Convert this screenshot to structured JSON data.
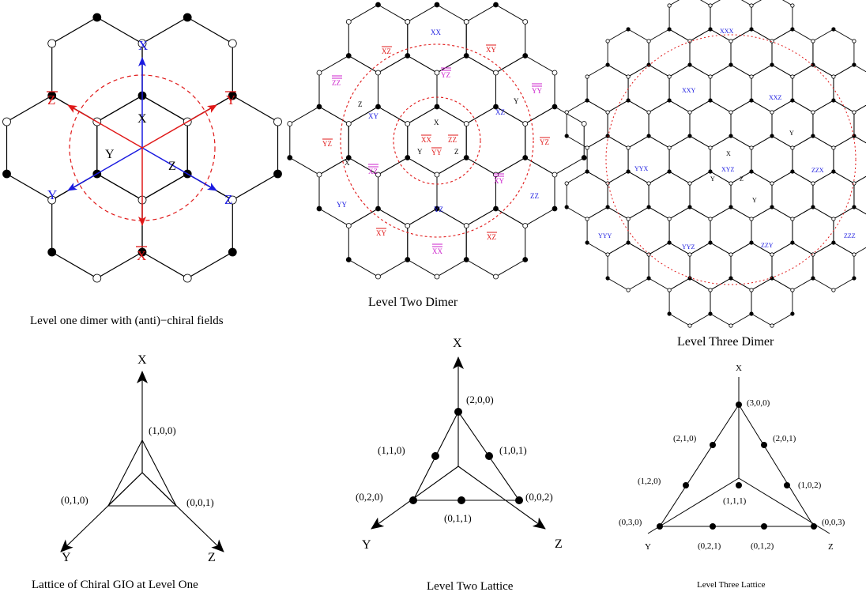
{
  "colors": {
    "line": "#000000",
    "red": "#e01818",
    "blue": "#1a1ae0",
    "magenta": "#cc22cc"
  },
  "panels": {
    "level1_dimer": {
      "caption": "Level one dimer with (anti)−chiral fields",
      "chiral": [
        "X",
        "Y",
        "Z"
      ],
      "antichiral": [
        "X",
        "Y",
        "Z"
      ],
      "inner": [
        "X",
        "Y",
        "Z"
      ]
    },
    "level2_dimer": {
      "caption": "Level Two Dimer",
      "blue": [
        "XX",
        "XY",
        "XZ",
        "YY",
        "YZ",
        "ZZ"
      ],
      "red": [
        "XZ",
        "XY",
        "YZ",
        "YZ",
        "XY",
        "XZ",
        "XX",
        "ZZ",
        "YY"
      ],
      "magenta": [
        "ZZ",
        "YZ",
        "YY",
        "XZ",
        "XY",
        "XX"
      ],
      "black": [
        "X",
        "Y",
        "Z",
        "X",
        "Y",
        "Z"
      ]
    },
    "level3_dimer": {
      "caption": "Level Three Dimer",
      "blue": [
        "XXX",
        "XXY",
        "XXZ",
        "YYX",
        "XYZ",
        "ZZX",
        "YYY",
        "YYZ",
        "ZZY",
        "ZZZ"
      ],
      "black": [
        "X",
        "Y",
        "Z",
        "Y",
        "Y"
      ]
    },
    "level1_lattice": {
      "caption": "Lattice of Chiral GIO at Level One",
      "axes": [
        "X",
        "Y",
        "Z"
      ],
      "points": [
        "(1,0,0)",
        "(0,1,0)",
        "(0,0,1)"
      ]
    },
    "level2_lattice": {
      "caption": "Level Two Lattice",
      "axes": [
        "X",
        "Y",
        "Z"
      ],
      "points": [
        "(2,0,0)",
        "(1,1,0)",
        "(1,0,1)",
        "(0,2,0)",
        "(0,0,2)",
        "(0,1,1)"
      ]
    },
    "level3_lattice": {
      "caption": "Level  Three Lattice",
      "axes": [
        "X",
        "Y",
        "Z"
      ],
      "points": [
        "(3,0,0)",
        "(2,1,0)",
        "(2,0,1)",
        "(1,2,0)",
        "(1,0,2)",
        "(1,1,1)",
        "(0,3,0)",
        "(0,0,3)",
        "(0,2,1)",
        "(0,1,2)"
      ]
    }
  }
}
